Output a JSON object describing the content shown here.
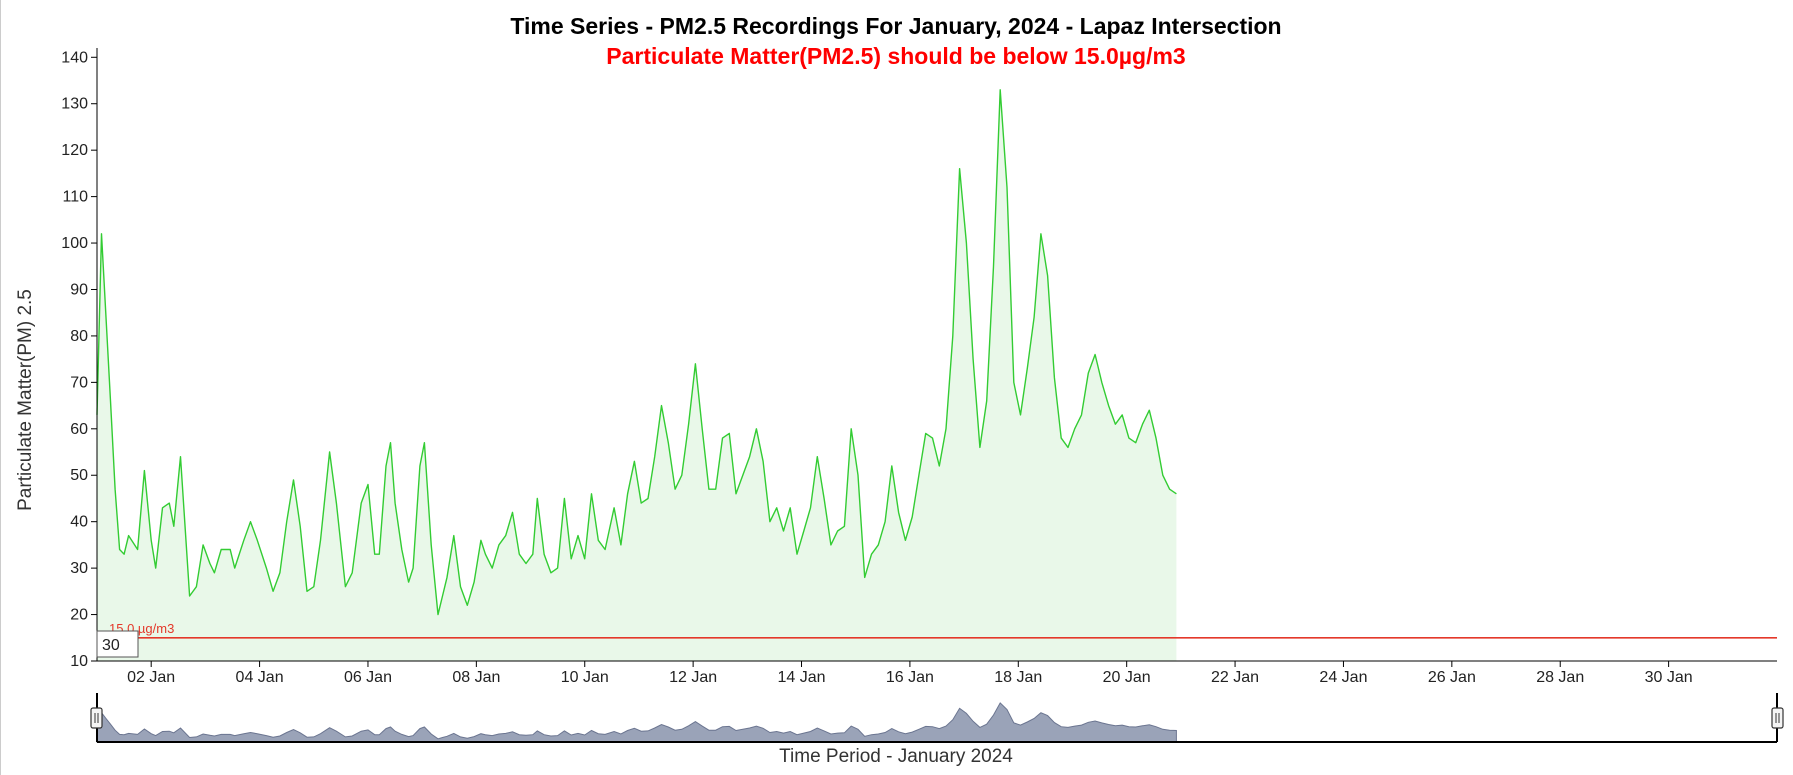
{
  "chart_data": {
    "type": "area",
    "title": "Time Series - PM2.5 Recordings For January, 2024 - Lapaz Intersection",
    "subtitle": "Particulate Matter(PM2.5) should be below 15.0µg/m3",
    "ylabel": "Particulate Matter(PM) 2.5",
    "xlabel": "Time Period - January 2024",
    "ylim": [
      10,
      142
    ],
    "xlim": [
      "2024-01-01",
      "2024-02-01"
    ],
    "yticks": [
      10,
      20,
      30,
      40,
      50,
      60,
      70,
      80,
      90,
      100,
      110,
      120,
      130,
      140
    ],
    "xticks": [
      {
        "date": "2024-01-02",
        "label": "02 Jan"
      },
      {
        "date": "2024-01-04",
        "label": "04 Jan"
      },
      {
        "date": "2024-01-06",
        "label": "06 Jan"
      },
      {
        "date": "2024-01-08",
        "label": "08 Jan"
      },
      {
        "date": "2024-01-10",
        "label": "10 Jan"
      },
      {
        "date": "2024-01-12",
        "label": "12 Jan"
      },
      {
        "date": "2024-01-14",
        "label": "14 Jan"
      },
      {
        "date": "2024-01-16",
        "label": "16 Jan"
      },
      {
        "date": "2024-01-18",
        "label": "18 Jan"
      },
      {
        "date": "2024-01-20",
        "label": "20 Jan"
      },
      {
        "date": "2024-01-22",
        "label": "22 Jan"
      },
      {
        "date": "2024-01-24",
        "label": "24 Jan"
      },
      {
        "date": "2024-01-26",
        "label": "26 Jan"
      },
      {
        "date": "2024-01-28",
        "label": "28 Jan"
      },
      {
        "date": "2024-01-30",
        "label": "30 Jan"
      }
    ],
    "grid": false,
    "threshold": {
      "value": 15,
      "label": "15.0 µg/m3",
      "color": "#e4382a"
    },
    "rolling_input": "30",
    "series": [
      {
        "color": "#33cc33",
        "fill": "#e9f8e9",
        "points": [
          [
            "2024-01-01 00:00",
            63
          ],
          [
            "2024-01-01 02:00",
            102
          ],
          [
            "2024-01-01 04:00",
            84
          ],
          [
            "2024-01-01 06:00",
            66
          ],
          [
            "2024-01-01 08:00",
            47
          ],
          [
            "2024-01-01 10:00",
            34
          ],
          [
            "2024-01-01 12:00",
            33
          ],
          [
            "2024-01-01 14:00",
            37
          ],
          [
            "2024-01-01 18:00",
            34
          ],
          [
            "2024-01-01 21:00",
            51
          ],
          [
            "2024-01-02 00:00",
            36
          ],
          [
            "2024-01-02 02:00",
            30
          ],
          [
            "2024-01-02 05:00",
            43
          ],
          [
            "2024-01-02 08:00",
            44
          ],
          [
            "2024-01-02 10:00",
            39
          ],
          [
            "2024-01-02 13:00",
            54
          ],
          [
            "2024-01-02 17:00",
            24
          ],
          [
            "2024-01-02 20:00",
            26
          ],
          [
            "2024-01-02 23:00",
            35
          ],
          [
            "2024-01-03 02:00",
            31
          ],
          [
            "2024-01-03 04:00",
            29
          ],
          [
            "2024-01-03 07:00",
            34
          ],
          [
            "2024-01-03 11:00",
            34
          ],
          [
            "2024-01-03 13:00",
            30
          ],
          [
            "2024-01-03 17:00",
            36
          ],
          [
            "2024-01-03 20:00",
            40
          ],
          [
            "2024-01-03 23:00",
            36
          ],
          [
            "2024-01-04 03:00",
            30
          ],
          [
            "2024-01-04 06:00",
            25
          ],
          [
            "2024-01-04 09:00",
            29
          ],
          [
            "2024-01-04 12:00",
            40
          ],
          [
            "2024-01-04 15:00",
            49
          ],
          [
            "2024-01-04 18:00",
            39
          ],
          [
            "2024-01-04 21:00",
            25
          ],
          [
            "2024-01-05 00:00",
            26
          ],
          [
            "2024-01-05 03:00",
            36
          ],
          [
            "2024-01-05 07:00",
            55
          ],
          [
            "2024-01-05 10:00",
            44
          ],
          [
            "2024-01-05 14:00",
            26
          ],
          [
            "2024-01-05 17:00",
            29
          ],
          [
            "2024-01-05 21:00",
            44
          ],
          [
            "2024-01-06 00:00",
            48
          ],
          [
            "2024-01-06 03:00",
            33
          ],
          [
            "2024-01-06 05:00",
            33
          ],
          [
            "2024-01-06 08:00",
            52
          ],
          [
            "2024-01-06 10:00",
            57
          ],
          [
            "2024-01-06 12:00",
            44
          ],
          [
            "2024-01-06 15:00",
            34
          ],
          [
            "2024-01-06 18:00",
            27
          ],
          [
            "2024-01-06 20:00",
            30
          ],
          [
            "2024-01-06 23:00",
            52
          ],
          [
            "2024-01-07 01:00",
            57
          ],
          [
            "2024-01-07 04:00",
            35
          ],
          [
            "2024-01-07 07:00",
            20
          ],
          [
            "2024-01-07 09:00",
            24
          ],
          [
            "2024-01-07 11:00",
            28
          ],
          [
            "2024-01-07 14:00",
            37
          ],
          [
            "2024-01-07 17:00",
            26
          ],
          [
            "2024-01-07 20:00",
            22
          ],
          [
            "2024-01-07 23:00",
            27
          ],
          [
            "2024-01-08 02:00",
            36
          ],
          [
            "2024-01-08 04:00",
            33
          ],
          [
            "2024-01-08 07:00",
            30
          ],
          [
            "2024-01-08 10:00",
            35
          ],
          [
            "2024-01-08 13:00",
            37
          ],
          [
            "2024-01-08 16:00",
            42
          ],
          [
            "2024-01-08 19:00",
            33
          ],
          [
            "2024-01-08 22:00",
            31
          ],
          [
            "2024-01-09 01:00",
            33
          ],
          [
            "2024-01-09 03:00",
            45
          ],
          [
            "2024-01-09 06:00",
            33
          ],
          [
            "2024-01-09 09:00",
            29
          ],
          [
            "2024-01-09 12:00",
            30
          ],
          [
            "2024-01-09 15:00",
            45
          ],
          [
            "2024-01-09 18:00",
            32
          ],
          [
            "2024-01-09 21:00",
            37
          ],
          [
            "2024-01-10 00:00",
            32
          ],
          [
            "2024-01-10 03:00",
            46
          ],
          [
            "2024-01-10 06:00",
            36
          ],
          [
            "2024-01-10 09:00",
            34
          ],
          [
            "2024-01-10 13:00",
            43
          ],
          [
            "2024-01-10 16:00",
            35
          ],
          [
            "2024-01-10 19:00",
            46
          ],
          [
            "2024-01-10 22:00",
            53
          ],
          [
            "2024-01-11 01:00",
            44
          ],
          [
            "2024-01-11 04:00",
            45
          ],
          [
            "2024-01-11 07:00",
            54
          ],
          [
            "2024-01-11 10:00",
            65
          ],
          [
            "2024-01-11 13:00",
            57
          ],
          [
            "2024-01-11 16:00",
            47
          ],
          [
            "2024-01-11 19:00",
            50
          ],
          [
            "2024-01-11 22:00",
            61
          ],
          [
            "2024-01-12 01:00",
            74
          ],
          [
            "2024-01-12 04:00",
            60
          ],
          [
            "2024-01-12 07:00",
            47
          ],
          [
            "2024-01-12 10:00",
            47
          ],
          [
            "2024-01-12 13:00",
            58
          ],
          [
            "2024-01-12 16:00",
            59
          ],
          [
            "2024-01-12 19:00",
            46
          ],
          [
            "2024-01-12 22:00",
            50
          ],
          [
            "2024-01-13 01:00",
            54
          ],
          [
            "2024-01-13 04:00",
            60
          ],
          [
            "2024-01-13 07:00",
            53
          ],
          [
            "2024-01-13 10:00",
            40
          ],
          [
            "2024-01-13 13:00",
            43
          ],
          [
            "2024-01-13 16:00",
            38
          ],
          [
            "2024-01-13 19:00",
            43
          ],
          [
            "2024-01-13 22:00",
            33
          ],
          [
            "2024-01-14 01:00",
            38
          ],
          [
            "2024-01-14 04:00",
            43
          ],
          [
            "2024-01-14 07:00",
            54
          ],
          [
            "2024-01-14 10:00",
            45
          ],
          [
            "2024-01-14 13:00",
            35
          ],
          [
            "2024-01-14 16:00",
            38
          ],
          [
            "2024-01-14 19:00",
            39
          ],
          [
            "2024-01-14 22:00",
            60
          ],
          [
            "2024-01-15 01:00",
            50
          ],
          [
            "2024-01-15 04:00",
            28
          ],
          [
            "2024-01-15 07:00",
            33
          ],
          [
            "2024-01-15 10:00",
            35
          ],
          [
            "2024-01-15 13:00",
            40
          ],
          [
            "2024-01-15 16:00",
            52
          ],
          [
            "2024-01-15 19:00",
            42
          ],
          [
            "2024-01-15 22:00",
            36
          ],
          [
            "2024-01-16 01:00",
            41
          ],
          [
            "2024-01-16 04:00",
            50
          ],
          [
            "2024-01-16 07:00",
            59
          ],
          [
            "2024-01-16 10:00",
            58
          ],
          [
            "2024-01-16 13:00",
            52
          ],
          [
            "2024-01-16 16:00",
            60
          ],
          [
            "2024-01-16 19:00",
            80
          ],
          [
            "2024-01-16 22:00",
            116
          ],
          [
            "2024-01-17 01:00",
            100
          ],
          [
            "2024-01-17 04:00",
            75
          ],
          [
            "2024-01-17 07:00",
            56
          ],
          [
            "2024-01-17 10:00",
            66
          ],
          [
            "2024-01-17 13:00",
            95
          ],
          [
            "2024-01-17 16:00",
            133
          ],
          [
            "2024-01-17 19:00",
            112
          ],
          [
            "2024-01-17 22:00",
            70
          ],
          [
            "2024-01-18 01:00",
            63
          ],
          [
            "2024-01-18 04:00",
            73
          ],
          [
            "2024-01-18 07:00",
            84
          ],
          [
            "2024-01-18 10:00",
            102
          ],
          [
            "2024-01-18 13:00",
            93
          ],
          [
            "2024-01-18 16:00",
            71
          ],
          [
            "2024-01-18 19:00",
            58
          ],
          [
            "2024-01-18 22:00",
            56
          ],
          [
            "2024-01-19 01:00",
            60
          ],
          [
            "2024-01-19 04:00",
            63
          ],
          [
            "2024-01-19 07:00",
            72
          ],
          [
            "2024-01-19 10:00",
            76
          ],
          [
            "2024-01-19 13:00",
            70
          ],
          [
            "2024-01-19 16:00",
            65
          ],
          [
            "2024-01-19 19:00",
            61
          ],
          [
            "2024-01-19 22:00",
            63
          ],
          [
            "2024-01-20 01:00",
            58
          ],
          [
            "2024-01-20 04:00",
            57
          ],
          [
            "2024-01-20 07:00",
            61
          ],
          [
            "2024-01-20 10:00",
            64
          ],
          [
            "2024-01-20 13:00",
            58
          ],
          [
            "2024-01-20 16:00",
            50
          ],
          [
            "2024-01-20 19:00",
            47
          ],
          [
            "2024-01-20 22:00",
            46
          ]
        ]
      }
    ]
  },
  "controls": {
    "slider_range": [
      "2024-01-01",
      "2024-02-01"
    ]
  }
}
